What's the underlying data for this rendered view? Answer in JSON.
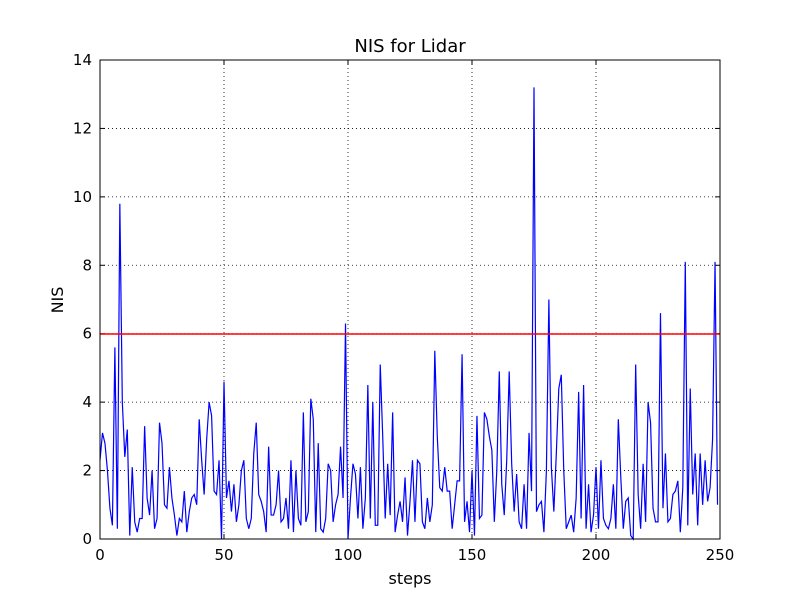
{
  "chart_data": {
    "type": "line",
    "title": "NIS for Lidar",
    "x_label": "steps",
    "y_label": "NIS",
    "xlim": [
      0,
      250
    ],
    "xticks": [
      0,
      50,
      100,
      150,
      200,
      250
    ],
    "ylim": [
      0,
      14
    ],
    "yticks": [
      0,
      2,
      4,
      6,
      8,
      10,
      12,
      14
    ],
    "grid": true,
    "x": [
      0,
      1,
      2,
      3,
      4,
      5,
      6,
      7,
      8,
      9,
      10,
      11,
      12,
      13,
      14,
      15,
      16,
      17,
      18,
      19,
      20,
      21,
      22,
      23,
      24,
      25,
      26,
      27,
      28,
      29,
      30,
      31,
      32,
      33,
      34,
      35,
      36,
      37,
      38,
      39,
      40,
      41,
      42,
      43,
      44,
      45,
      46,
      47,
      48,
      49,
      50,
      51,
      52,
      53,
      54,
      55,
      56,
      57,
      58,
      59,
      60,
      61,
      62,
      63,
      64,
      65,
      66,
      67,
      68,
      69,
      70,
      71,
      72,
      73,
      74,
      75,
      76,
      77,
      78,
      79,
      80,
      81,
      82,
      83,
      84,
      85,
      86,
      87,
      88,
      89,
      90,
      91,
      92,
      93,
      94,
      95,
      96,
      97,
      98,
      99,
      100,
      101,
      102,
      103,
      104,
      105,
      106,
      107,
      108,
      109,
      110,
      111,
      112,
      113,
      114,
      115,
      116,
      117,
      118,
      119,
      120,
      121,
      122,
      123,
      124,
      125,
      126,
      127,
      128,
      129,
      130,
      131,
      132,
      133,
      134,
      135,
      136,
      137,
      138,
      139,
      140,
      141,
      142,
      143,
      144,
      145,
      146,
      147,
      148,
      149,
      150,
      151,
      152,
      153,
      154,
      155,
      156,
      157,
      158,
      159,
      160,
      161,
      162,
      163,
      164,
      165,
      166,
      167,
      168,
      169,
      170,
      171,
      172,
      173,
      174,
      175,
      176,
      177,
      178,
      179,
      180,
      181,
      182,
      183,
      184,
      185,
      186,
      187,
      188,
      189,
      190,
      191,
      192,
      193,
      194,
      195,
      196,
      197,
      198,
      199,
      200,
      201,
      202,
      203,
      204,
      205,
      206,
      207,
      208,
      209,
      210,
      211,
      212,
      213,
      214,
      215,
      216,
      217,
      218,
      219,
      220,
      221,
      222,
      223,
      224,
      225,
      226,
      227,
      228,
      229,
      230,
      231,
      232,
      233,
      234,
      235,
      236,
      237,
      238,
      239,
      240,
      241,
      242,
      243,
      244,
      245,
      246,
      247,
      248,
      249
    ],
    "series": [
      {
        "color": "#0000ff",
        "values": [
          2.3,
          3.1,
          2.8,
          2.0,
          0.9,
          0.4,
          5.6,
          0.3,
          9.8,
          4.0,
          2.4,
          3.2,
          0.1,
          2.1,
          0.5,
          0.2,
          0.6,
          0.6,
          3.3,
          1.2,
          0.7,
          2.0,
          0.3,
          0.6,
          3.4,
          2.8,
          1.0,
          0.9,
          2.1,
          1.2,
          0.7,
          0.1,
          0.6,
          0.5,
          1.4,
          0.2,
          0.8,
          1.2,
          1.3,
          1.0,
          3.5,
          2.3,
          1.3,
          2.9,
          4.0,
          3.6,
          1.4,
          1.3,
          2.3,
          0.0,
          4.6,
          1.2,
          1.7,
          0.8,
          1.6,
          0.5,
          1.0,
          2.0,
          2.3,
          0.6,
          0.3,
          0.6,
          2.5,
          3.4,
          1.3,
          1.1,
          0.8,
          0.2,
          2.7,
          0.7,
          0.7,
          1.0,
          2.0,
          0.5,
          0.6,
          1.2,
          0.3,
          2.3,
          0.2,
          2.0,
          0.6,
          0.4,
          3.7,
          0.5,
          0.8,
          4.1,
          3.5,
          0.2,
          2.8,
          0.3,
          0.2,
          0.6,
          2.2,
          2.0,
          0.5,
          1.0,
          1.3,
          2.7,
          1.2,
          6.3,
          0.0,
          1.2,
          2.2,
          1.9,
          0.6,
          2.1,
          0.3,
          1.2,
          4.5,
          0.6,
          4.0,
          0.4,
          0.4,
          5.1,
          3.0,
          0.6,
          2.2,
          0.7,
          3.7,
          0.2,
          0.7,
          1.1,
          0.5,
          1.8,
          0.1,
          1.1,
          2.3,
          0.5,
          2.3,
          2.2,
          0.5,
          0.3,
          1.2,
          0.5,
          1.0,
          5.5,
          3.0,
          1.5,
          1.4,
          2.1,
          1.4,
          1.4,
          0.3,
          1.0,
          1.7,
          1.7,
          5.4,
          0.5,
          1.1,
          0.2,
          2.0,
          0.1,
          3.6,
          0.6,
          0.7,
          3.7,
          3.5,
          3.0,
          2.6,
          0.5,
          2.0,
          4.9,
          1.6,
          0.7,
          2.3,
          4.9,
          2.2,
          0.8,
          1.9,
          0.5,
          0.3,
          1.6,
          0.3,
          3.1,
          1.4,
          13.2,
          0.8,
          1.0,
          1.1,
          0.2,
          2.0,
          7.0,
          2.1,
          0.8,
          2.5,
          4.4,
          4.8,
          2.0,
          0.3,
          0.5,
          0.7,
          0.2,
          1.2,
          4.3,
          0.6,
          4.5,
          0.3,
          1.6,
          0.2,
          0.7,
          2.1,
          0.3,
          2.3,
          0.6,
          0.4,
          0.3,
          0.6,
          1.6,
          0.3,
          3.5,
          1.8,
          0.3,
          1.1,
          1.2,
          0.1,
          0.0,
          5.1,
          1.3,
          0.3,
          2.2,
          0.5,
          4.0,
          3.4,
          0.9,
          0.5,
          0.5,
          6.6,
          0.9,
          2.5,
          0.5,
          0.6,
          1.3,
          1.4,
          1.7,
          0.2,
          1.5,
          8.1,
          0.4,
          4.4,
          1.3,
          2.5,
          0.4,
          2.5,
          1.0,
          2.3,
          1.1,
          1.5,
          2.9,
          8.1,
          1.0
        ]
      }
    ],
    "reference_line": {
      "value": 5.991,
      "color": "#ff0000"
    }
  }
}
